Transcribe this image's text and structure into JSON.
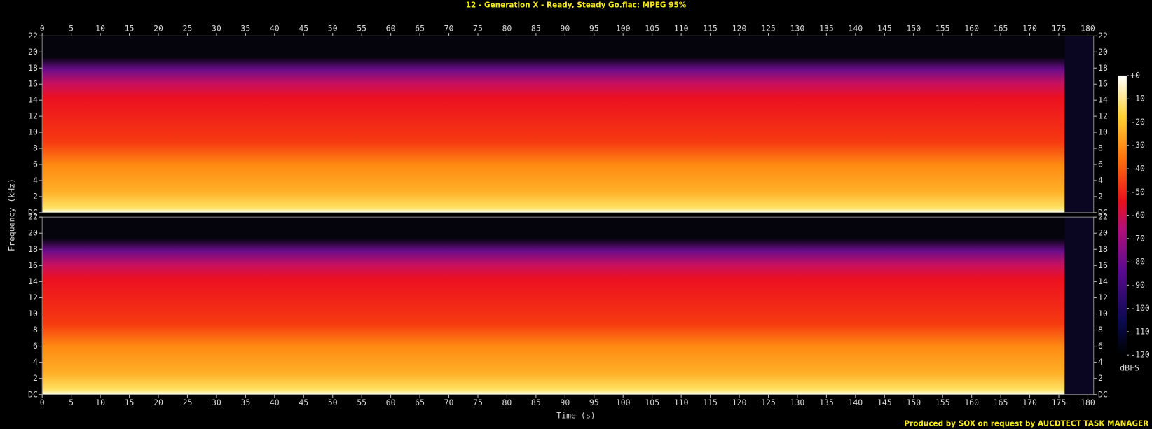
{
  "chart_data": {
    "type": "spectrogram",
    "title": "12 - Generation X - Ready, Steady Go.flac: MPEG 95%",
    "xlabel": "Time (s)",
    "ylabel": "Frequency (kHz)",
    "xlim": [
      0,
      181
    ],
    "xticks": [
      0,
      5,
      10,
      15,
      20,
      25,
      30,
      35,
      40,
      45,
      50,
      55,
      60,
      65,
      70,
      75,
      80,
      85,
      90,
      95,
      100,
      105,
      110,
      115,
      120,
      125,
      130,
      135,
      140,
      145,
      150,
      155,
      160,
      165,
      170,
      175,
      180
    ],
    "ylim": [
      0,
      22
    ],
    "yticks": [
      {
        "value": 0,
        "label": "DC"
      },
      2,
      4,
      6,
      8,
      10,
      12,
      14,
      16,
      18,
      20,
      22
    ],
    "colorbar": {
      "label": "dBFS",
      "lim": [
        -120,
        0
      ],
      "ticks": [
        {
          "value": 0,
          "label": "+0"
        },
        -10,
        -20,
        -30,
        -40,
        -50,
        -60,
        -70,
        -80,
        -90,
        -100,
        -110,
        -120
      ]
    },
    "credit": "Produced by SOX on request by AUCDTECT TASK MANAGER"
  }
}
